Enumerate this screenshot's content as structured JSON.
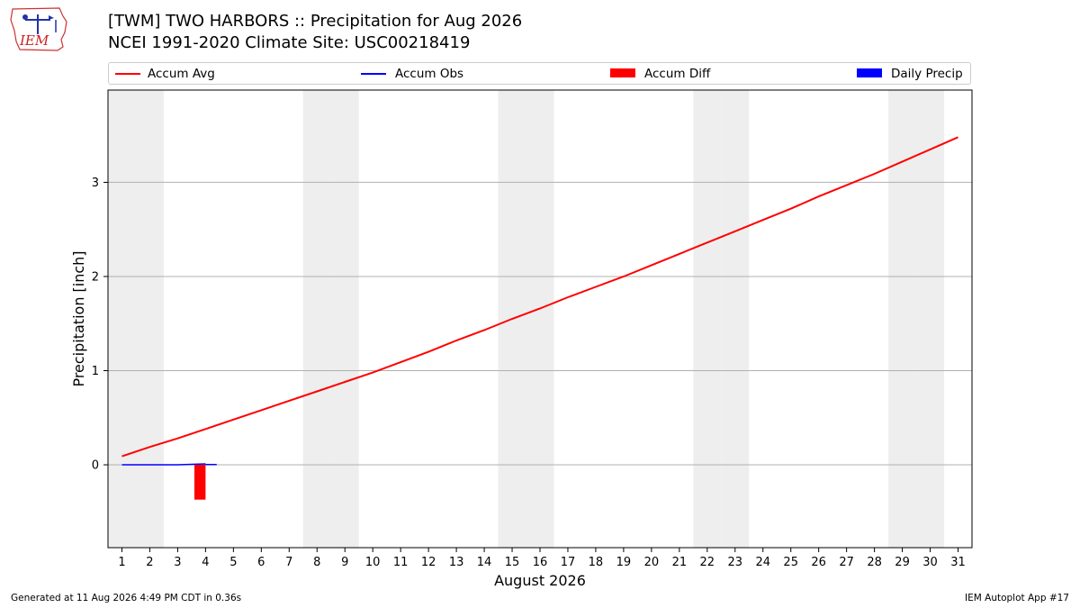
{
  "header": {
    "title_line1": "[TWM] TWO HARBORS :: Precipitation for Aug 2026",
    "title_line2": "NCEI 1991-2020 Climate Site: USC00218419",
    "logo_text": "IEM"
  },
  "footer": {
    "left": "Generated at 11 Aug 2026 4:49 PM CDT in 0.36s",
    "right": "IEM Autoplot App #17"
  },
  "colors": {
    "accum_avg": "#ff0000",
    "accum_obs": "#0000ff",
    "accum_diff": "#ff0000",
    "daily_precip": "#0000ff",
    "weekend_shade": "#eeeeee",
    "grid": "#b0b0b0"
  },
  "chart_data": {
    "type": "line",
    "xlabel": "August 2026",
    "ylabel": "Precipitation [inch]",
    "xlim": [
      0.5,
      31.5
    ],
    "ylim": [
      -0.88,
      3.98
    ],
    "yticks": [
      0,
      1,
      2,
      3
    ],
    "grid": "y",
    "legend_position": "top",
    "categories": [
      "1",
      "2",
      "3",
      "4",
      "5",
      "6",
      "7",
      "8",
      "9",
      "10",
      "11",
      "12",
      "13",
      "14",
      "15",
      "16",
      "17",
      "18",
      "19",
      "20",
      "21",
      "22",
      "23",
      "24",
      "25",
      "26",
      "27",
      "28",
      "29",
      "30",
      "31"
    ],
    "weekend_days": [
      1,
      2,
      8,
      9,
      15,
      16,
      22,
      23,
      29,
      30
    ],
    "series": [
      {
        "name": "Accum Avg",
        "kind": "line",
        "x": [
          1,
          2,
          3,
          4,
          5,
          6,
          7,
          8,
          9,
          10,
          11,
          12,
          13,
          14,
          15,
          16,
          17,
          18,
          19,
          20,
          21,
          22,
          23,
          24,
          25,
          26,
          27,
          28,
          29,
          30,
          31
        ],
        "values": [
          0.09,
          0.19,
          0.28,
          0.38,
          0.48,
          0.58,
          0.68,
          0.78,
          0.88,
          0.98,
          1.09,
          1.2,
          1.32,
          1.43,
          1.55,
          1.66,
          1.78,
          1.89,
          2.0,
          2.12,
          2.24,
          2.36,
          2.48,
          2.6,
          2.72,
          2.85,
          2.97,
          3.09,
          3.22,
          3.35,
          3.48
        ]
      },
      {
        "name": "Accum Obs",
        "kind": "line",
        "x": [
          1,
          2,
          3,
          4
        ],
        "values": [
          0,
          0,
          0,
          0.01
        ]
      },
      {
        "name": "Accum Diff",
        "kind": "bar",
        "x": [
          4
        ],
        "values": [
          -0.37
        ]
      },
      {
        "name": "Daily Precip",
        "kind": "bar",
        "x": [
          4
        ],
        "values": [
          0.01
        ]
      }
    ]
  }
}
